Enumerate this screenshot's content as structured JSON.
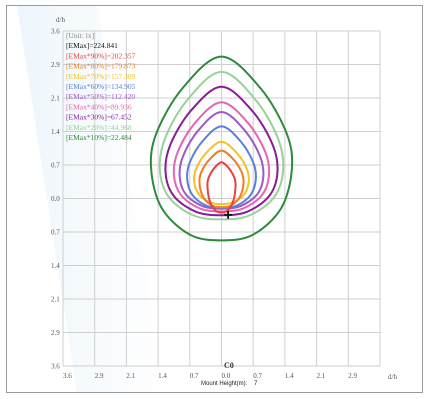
{
  "chart_data": {
    "type": "contour",
    "unit_label": "[Unit: lx]",
    "emax_label": "[EMax]=224.841",
    "emax": 224.841,
    "y_axis_label": "d/h",
    "x_axis_label": "d/h",
    "plane_label": "C0",
    "mount_height_label": "Mount Height(m):",
    "mount_height_value": "7",
    "x_ticks": [
      "3.6",
      "2.9",
      "2.1",
      "1.4",
      "0.7",
      "0.0",
      "0.7",
      "1.4",
      "2.1",
      "2.9"
    ],
    "y_ticks": [
      "3.6",
      "2.9",
      "2.1",
      "1.4",
      "0.7",
      "0.0",
      "0.7",
      "1.4",
      "2.1",
      "2.9",
      "3.6"
    ],
    "x_range": [
      -3.6,
      3.6
    ],
    "y_range": [
      -3.6,
      3.6
    ],
    "grid": true,
    "legend_position": "top-left",
    "center": [
      0.0,
      0.0
    ],
    "levels": [
      {
        "label": "[EMax*90%]=202.357",
        "percent": 90,
        "value": 202.357,
        "color": "#e8403f",
        "rx": 0.32,
        "top": 0.78,
        "bottom": -0.3,
        "cy": 0.28
      },
      {
        "label": "[EMax*80%]=179.873",
        "percent": 80,
        "value": 179.873,
        "color": "#f07d22",
        "rx": 0.5,
        "top": 1.03,
        "bottom": -0.19,
        "cy": 0.34
      },
      {
        "label": "[EMax*70%]=157.389",
        "percent": 70,
        "value": 157.389,
        "color": "#f5c126",
        "rx": 0.62,
        "top": 1.22,
        "bottom": -0.12,
        "cy": 0.38
      },
      {
        "label": "[EMax*60%]=134.905",
        "percent": 60,
        "value": 134.905,
        "color": "#5a7fd6",
        "rx": 0.78,
        "top": 1.55,
        "bottom": -0.2,
        "cy": 0.42
      },
      {
        "label": "[EMax*50%]=112.420",
        "percent": 50,
        "value": 112.42,
        "color": "#9b59c9",
        "rx": 0.95,
        "top": 1.86,
        "bottom": -0.22,
        "cy": 0.46
      },
      {
        "label": "[EMax*40%]=89.936",
        "percent": 40,
        "value": 89.936,
        "color": "#e565b0",
        "rx": 1.08,
        "top": 2.07,
        "bottom": -0.28,
        "cy": 0.5
      },
      {
        "label": "[EMax*30%]=67.452",
        "percent": 30,
        "value": 67.452,
        "color": "#8b1a99",
        "rx": 1.27,
        "top": 2.4,
        "bottom": -0.36,
        "cy": 0.55
      },
      {
        "label": "[EMax*20%]=44.968",
        "percent": 20,
        "value": 44.968,
        "color": "#98d29a",
        "rx": 1.4,
        "top": 2.72,
        "bottom": -0.45,
        "cy": 0.6
      },
      {
        "label": "[EMax*10%]=22.484",
        "percent": 10,
        "value": 22.484,
        "color": "#2e8b3a",
        "rx": 1.6,
        "top": 3.05,
        "bottom": -0.9,
        "cy": 0.65
      }
    ],
    "marker": {
      "x": 0.15,
      "y": -0.35,
      "symbol": "+"
    }
  }
}
